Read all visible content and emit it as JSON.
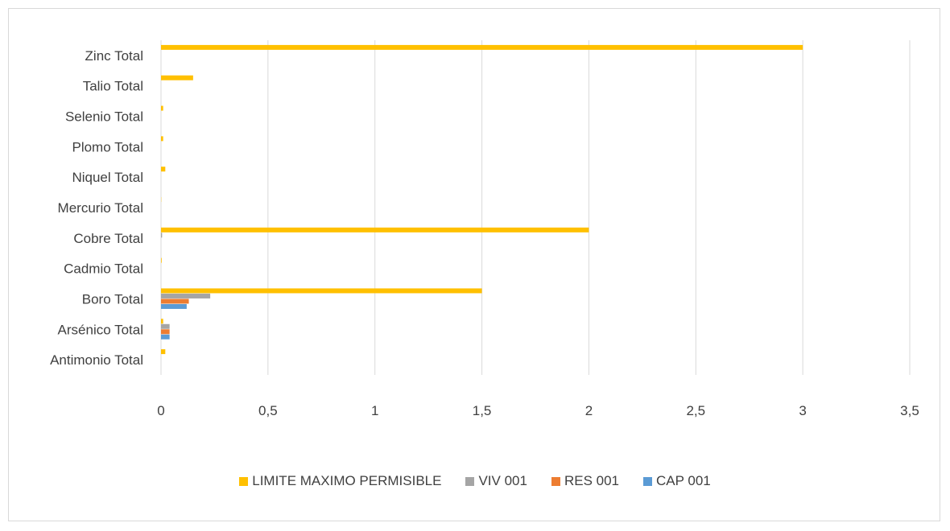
{
  "chart_data": {
    "type": "bar",
    "orientation": "horizontal",
    "title": "",
    "xlabel": "",
    "ylabel": "",
    "categories": [
      "Antimonio Total",
      "Arsénico Total",
      "Boro Total",
      "Cadmio Total",
      "Cobre Total",
      "Mercurio Total",
      "Niquel Total",
      "Plomo Total",
      "Selenio Total",
      "Talio Total",
      "Zinc  Total"
    ],
    "series": [
      {
        "name": "CAP 001",
        "color": "#5b9bd5",
        "values": [
          0,
          0.04,
          0.12,
          0,
          0,
          0,
          0,
          0,
          0,
          0,
          0
        ]
      },
      {
        "name": "RES 001",
        "color": "#ed7d31",
        "values": [
          0,
          0.04,
          0.13,
          0,
          0,
          0,
          0,
          0,
          0,
          0,
          0
        ]
      },
      {
        "name": "VIV 001",
        "color": "#a5a5a5",
        "values": [
          0,
          0.04,
          0.23,
          0,
          0.005,
          0,
          0,
          0,
          0,
          0,
          0
        ]
      },
      {
        "name": "LIMITE MAXIMO PERMISIBLE",
        "color": "#ffc000",
        "values": [
          0.02,
          0.01,
          1.5,
          0.003,
          2,
          0.001,
          0.02,
          0.01,
          0.01,
          0.15,
          3
        ]
      }
    ],
    "xlim": [
      0,
      3.5
    ],
    "xticks": [
      "0",
      "0,5",
      "1",
      "1,5",
      "2",
      "2,5",
      "3",
      "3,5"
    ],
    "grid": "vertical",
    "legend_position": "bottom",
    "legend_order": [
      "LIMITE MAXIMO PERMISIBLE",
      "VIV 001",
      "RES 001",
      "CAP 001"
    ]
  }
}
